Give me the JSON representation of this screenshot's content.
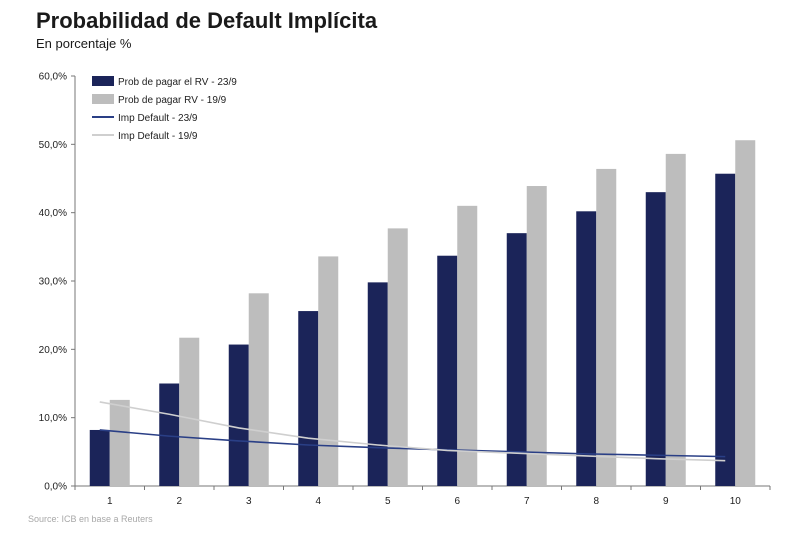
{
  "title": "Probabilidad de Default Implícita",
  "subtitle": "En porcentaje %",
  "source": "Source: ICB en base a Reuters",
  "chart_data": {
    "type": "bar",
    "categories": [
      "1",
      "2",
      "3",
      "4",
      "5",
      "6",
      "7",
      "8",
      "9",
      "10"
    ],
    "series": [
      {
        "name": "Prob de pagar el RV - 23/9",
        "kind": "bar",
        "color": "#1b2459",
        "values": [
          8.2,
          15.0,
          20.7,
          25.6,
          29.8,
          33.7,
          37.0,
          40.2,
          43.0,
          45.7
        ]
      },
      {
        "name": "Prob de pagar RV - 19/9",
        "kind": "bar",
        "color": "#bdbdbd",
        "values": [
          12.6,
          21.7,
          28.2,
          33.6,
          37.7,
          41.0,
          43.9,
          46.4,
          48.6,
          50.6
        ]
      },
      {
        "name": "Imp Default - 23/9",
        "kind": "line",
        "color": "#2a3f86",
        "values": [
          8.2,
          7.3,
          6.6,
          6.0,
          5.6,
          5.3,
          5.0,
          4.7,
          4.5,
          4.3
        ]
      },
      {
        "name": "Imp Default - 19/9",
        "kind": "line",
        "color": "#cfcfcf",
        "values": [
          12.3,
          10.5,
          8.5,
          7.0,
          6.0,
          5.2,
          4.8,
          4.4,
          4.0,
          3.7
        ]
      }
    ],
    "y_ticks": [
      "0,0%",
      "10,0%",
      "20,0%",
      "30,0%",
      "40,0%",
      "50,0%",
      "60,0%"
    ],
    "ylim": [
      0,
      60
    ],
    "legend_position": "top-left",
    "grid": false
  }
}
